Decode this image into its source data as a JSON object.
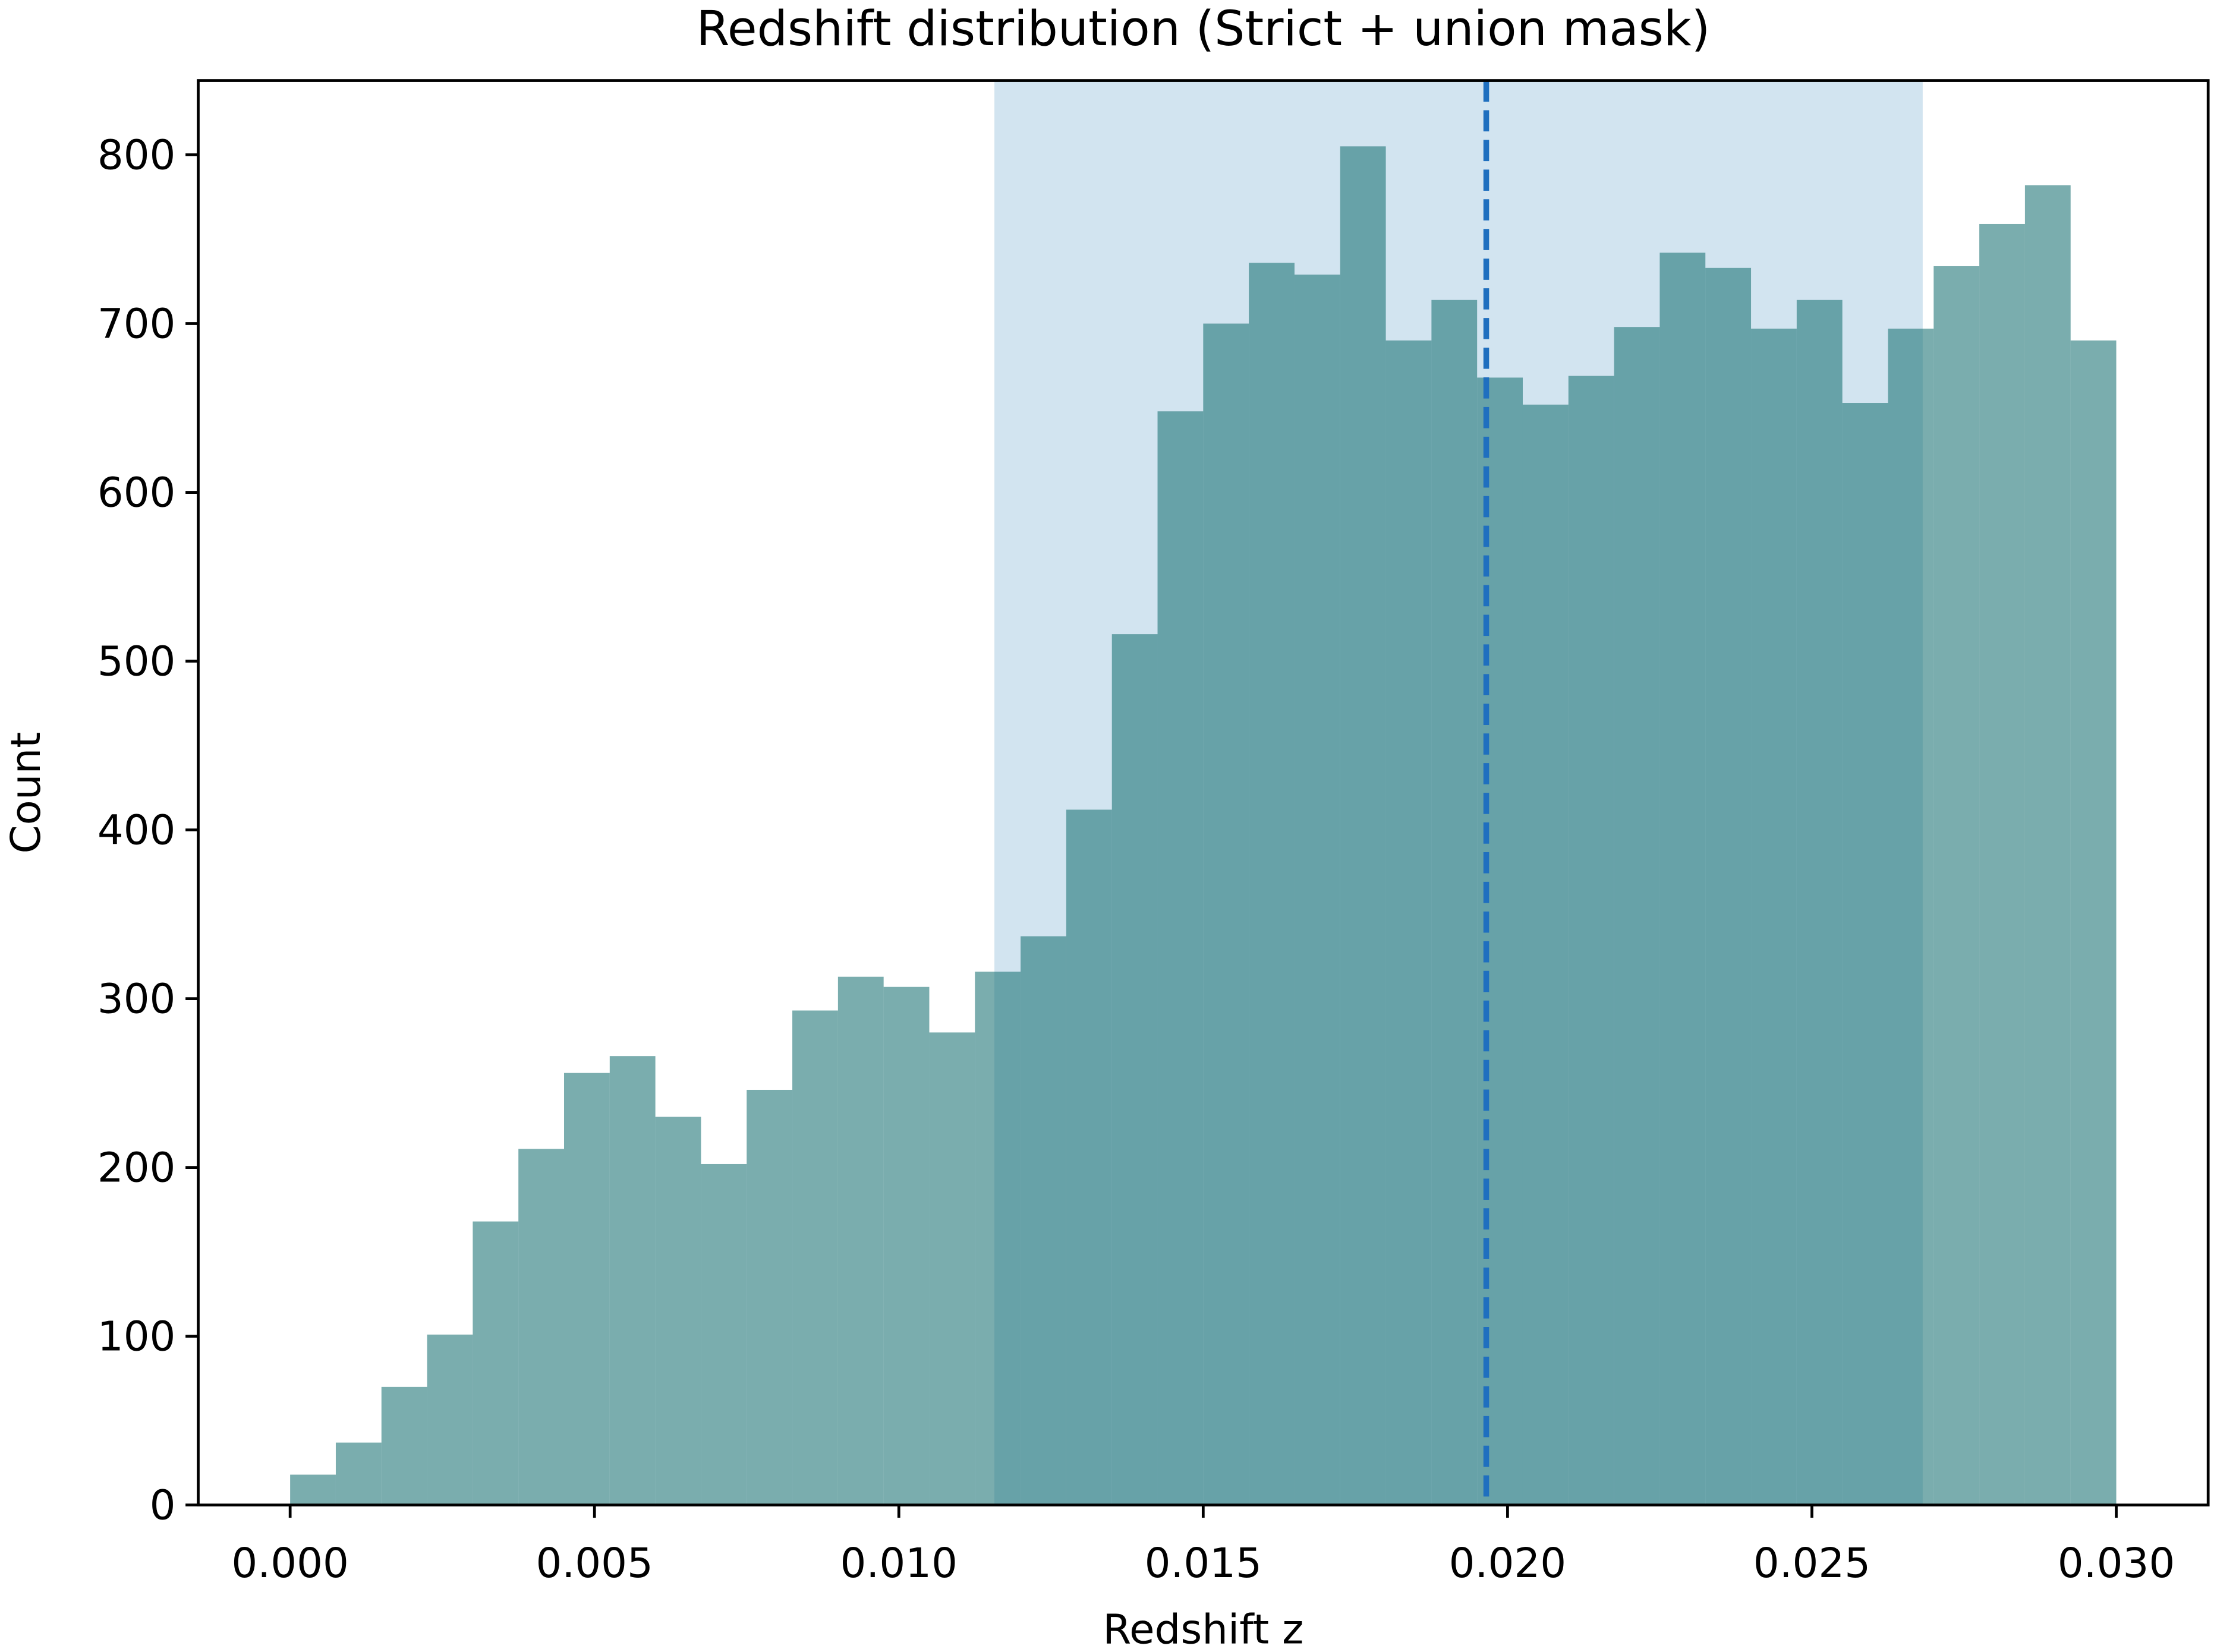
{
  "chart_data": {
    "type": "histogram",
    "title": "Redshift distribution (Strict + union mask)",
    "x_label": "Redshift z",
    "y_label": "Count",
    "bins": [
      0,
      0.00075,
      0.0015,
      0.00225,
      0.003,
      0.00375,
      0.0045,
      0.00525,
      0.006,
      0.00675,
      0.0075,
      0.00825,
      0.009,
      0.00975,
      0.0105,
      0.01125,
      0.012,
      0.01275,
      0.0135,
      0.01425,
      0.015,
      0.01575,
      0.0165,
      0.01725,
      0.018,
      0.01875,
      0.0195,
      0.02025,
      0.021,
      0.02175,
      0.0225,
      0.02325,
      0.024,
      0.02475,
      0.0255,
      0.02625,
      0.027,
      0.02775,
      0.0285,
      0.02925,
      0.03
    ],
    "values": [
      18,
      37,
      70,
      101,
      168,
      211,
      256,
      266,
      230,
      202,
      246,
      293,
      313,
      307,
      280,
      316,
      337,
      412,
      516,
      648,
      700,
      736,
      729,
      805,
      690,
      714,
      668,
      652,
      669,
      698,
      742,
      733,
      697,
      714,
      653,
      697,
      734,
      759,
      782,
      690
    ],
    "color": "#1a7273",
    "opacity": 0.58,
    "span": [
      0.01157,
      0.02682
    ],
    "span_color": "#d2e4f0",
    "vline": 0.01965,
    "vline_color": "#1f6fbf",
    "xlim": [
      -0.00151,
      0.03151
    ],
    "ylim": [
      0,
      844
    ],
    "xticks": [
      {
        "value": 0,
        "label": "0.000"
      },
      {
        "value": 0.005,
        "label": "0.005"
      },
      {
        "value": 0.01,
        "label": "0.010"
      },
      {
        "value": 0.015,
        "label": "0.015"
      },
      {
        "value": 0.02,
        "label": "0.020"
      },
      {
        "value": 0.025,
        "label": "0.025"
      },
      {
        "value": 0.03,
        "label": "0.030"
      }
    ],
    "yticks": [
      0,
      100,
      200,
      300,
      400,
      500,
      600,
      700,
      800
    ]
  }
}
